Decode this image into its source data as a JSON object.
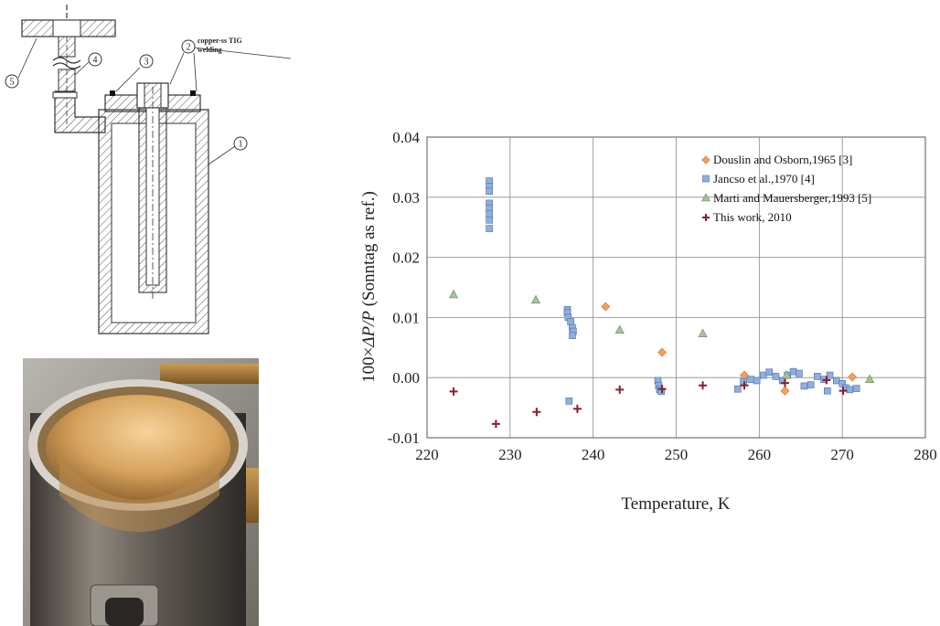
{
  "schematic": {
    "part_numbers": [
      "1",
      "2",
      "3",
      "4",
      "5"
    ],
    "welding_label_line1": "copper-ss TIG",
    "welding_label_line2": "welding"
  },
  "chart_data": {
    "type": "scatter",
    "title": "",
    "xlabel": "Temperature, K",
    "ylabel_prefix": "100×",
    "ylabel_italic": "ΔP/P",
    "ylabel_suffix": " (Sonntag as ref.)",
    "xlim": [
      220,
      280
    ],
    "ylim": [
      -0.01,
      0.04
    ],
    "xticks": [
      "220",
      "230",
      "240",
      "250",
      "260",
      "270",
      "280"
    ],
    "yticks": [
      "-0.01",
      "0.00",
      "0.01",
      "0.02",
      "0.03",
      "0.04"
    ],
    "grid": true,
    "legend_position": "top-right",
    "series": [
      {
        "name": "Douslin and Osborn,1965 [3]",
        "marker": "diamond",
        "color": "#f2a15c",
        "points": [
          [
            241.5,
            0.0118
          ],
          [
            248.3,
            0.0042
          ],
          [
            258.2,
            0.0004
          ],
          [
            263.1,
            -0.0022
          ],
          [
            271.2,
            0.0001
          ]
        ]
      },
      {
        "name": "Jancso et al.,1970 [4]",
        "marker": "square",
        "color": "#8fb0dc",
        "points": [
          [
            227.5,
            0.0327
          ],
          [
            227.5,
            0.0318
          ],
          [
            227.5,
            0.031
          ],
          [
            227.5,
            0.029
          ],
          [
            227.5,
            0.0282
          ],
          [
            227.5,
            0.0272
          ],
          [
            227.5,
            0.0262
          ],
          [
            227.5,
            0.0248
          ],
          [
            236.9,
            0.0113
          ],
          [
            236.9,
            0.0108
          ],
          [
            237.0,
            0.01
          ],
          [
            237.3,
            0.0093
          ],
          [
            237.5,
            0.0083
          ],
          [
            237.6,
            0.0077
          ],
          [
            237.5,
            0.007
          ],
          [
            237.1,
            -0.0039
          ],
          [
            247.8,
            -0.0005
          ],
          [
            247.9,
            -0.0013
          ],
          [
            248.0,
            -0.002
          ],
          [
            248.2,
            -0.0023
          ],
          [
            257.4,
            -0.0019
          ],
          [
            258.1,
            -0.0007
          ],
          [
            259.0,
            -0.0003
          ],
          [
            259.7,
            -0.0005
          ],
          [
            260.5,
            0.0004
          ],
          [
            261.2,
            0.0009
          ],
          [
            262.0,
            0.0002
          ],
          [
            262.8,
            -0.0005
          ],
          [
            263.4,
            0.0004
          ],
          [
            264.1,
            0.001
          ],
          [
            264.8,
            0.0007
          ],
          [
            265.4,
            -0.0014
          ],
          [
            266.2,
            -0.0012
          ],
          [
            267.0,
            0.0002
          ],
          [
            267.8,
            -0.0003
          ],
          [
            268.2,
            -0.0022
          ],
          [
            268.5,
            0.0004
          ],
          [
            269.3,
            -0.0005
          ],
          [
            270.0,
            -0.001
          ],
          [
            270.4,
            -0.0017
          ],
          [
            270.9,
            -0.002
          ],
          [
            271.7,
            -0.0018
          ]
        ]
      },
      {
        "name": "Marti and Mauersberger,1993 [5]",
        "marker": "triangle",
        "color": "#a7c297",
        "points": [
          [
            223.2,
            0.0138
          ],
          [
            233.1,
            0.0129
          ],
          [
            243.2,
            0.0079
          ],
          [
            253.2,
            0.0073
          ],
          [
            263.3,
            0.0004
          ],
          [
            273.3,
            -0.0003
          ]
        ]
      },
      {
        "name": "This work, 2010",
        "marker": "plus",
        "color": "#8a1f2e",
        "points": [
          [
            223.2,
            -0.0023
          ],
          [
            228.3,
            -0.0077
          ],
          [
            233.2,
            -0.0057
          ],
          [
            238.1,
            -0.0052
          ],
          [
            243.2,
            -0.002
          ],
          [
            248.3,
            -0.0019
          ],
          [
            253.2,
            -0.0013
          ],
          [
            258.2,
            -0.0013
          ],
          [
            263.1,
            -0.0009
          ],
          [
            268.1,
            -0.0004
          ],
          [
            270.1,
            -0.0022
          ]
        ]
      }
    ]
  }
}
